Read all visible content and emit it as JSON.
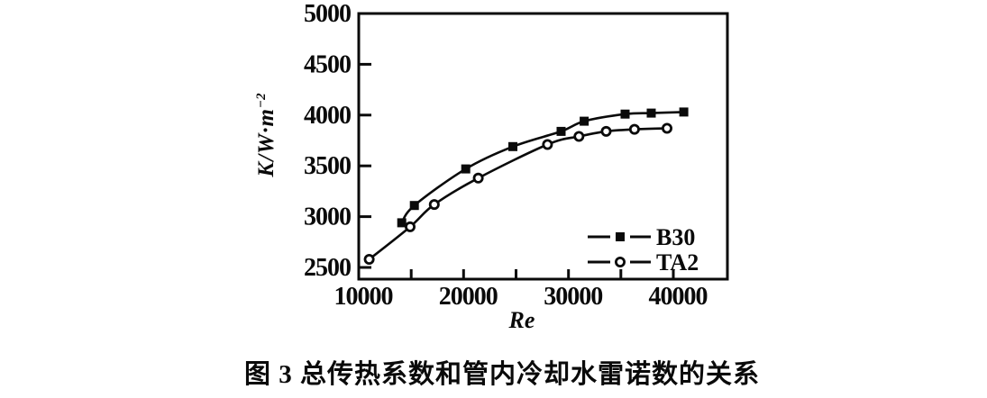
{
  "figure": {
    "caption": "图 3  总传热系数和管内冷却水雷诺数的关系"
  },
  "labels": {
    "xlabel": "Re",
    "ylabel_main": "K/W·m",
    "ylabel_sup": "−2"
  },
  "colors": {
    "ink": "#0a0a0a",
    "background": "#ffffff"
  },
  "chart_data": {
    "type": "line",
    "title": "",
    "xlabel": "Re",
    "ylabel": "K/W·m⁻²",
    "xlim": [
      10000,
      45160
    ],
    "ylim": [
      2385,
      5000
    ],
    "grid": false,
    "legend_position": "inside-bottom-right",
    "x_tick_labels": [
      10000,
      20000,
      30000,
      40000
    ],
    "x_minor_ticks": [
      15000,
      20000,
      25000,
      30000,
      35000,
      40000
    ],
    "y_ticks": [
      2500,
      3000,
      3500,
      4000,
      4500,
      5000
    ],
    "series": [
      {
        "name": "B30",
        "marker": "filled-square",
        "x": [
          14100,
          15300,
          20200,
          24700,
          29300,
          31500,
          35400,
          37900,
          41000
        ],
        "y": [
          2940,
          3110,
          3470,
          3690,
          3840,
          3940,
          4010,
          4020,
          4030
        ]
      },
      {
        "name": "TA2",
        "marker": "open-circle",
        "x": [
          11000,
          14900,
          17200,
          21400,
          28000,
          31000,
          33600,
          36300,
          39400
        ],
        "y": [
          2580,
          2900,
          3120,
          3380,
          3710,
          3790,
          3840,
          3860,
          3870
        ]
      }
    ]
  }
}
